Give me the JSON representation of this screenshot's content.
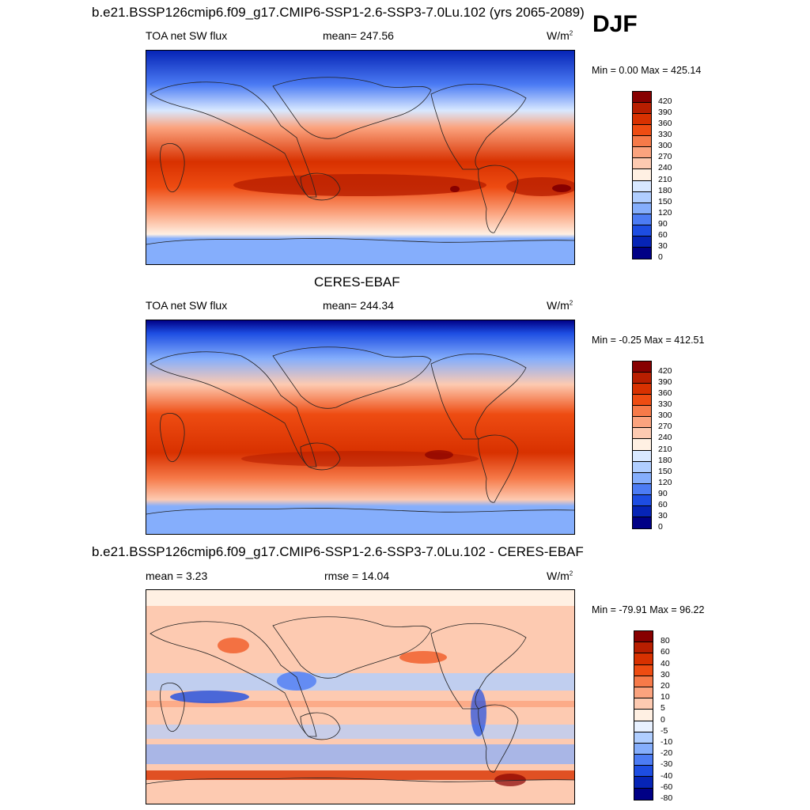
{
  "season": "DJF",
  "panels": [
    {
      "id": "model",
      "title": "b.e21.BSSP126cmip6.f09_g17.CMIP6-SSP1-2.6-SSP3-7.0Lu.102 (yrs 2065-2089)",
      "left_text": "TOA net SW flux",
      "center_text": "mean= 247.56",
      "units": "W/m",
      "units_sup": "2",
      "minmax": "Min =   0.00 Max = 425.14",
      "colorbar_labels": [
        "420",
        "390",
        "360",
        "330",
        "300",
        "270",
        "240",
        "210",
        "180",
        "150",
        "120",
        "90",
        "60",
        "30",
        "0"
      ]
    },
    {
      "id": "obs",
      "title": "CERES-EBAF",
      "left_text": "TOA net SW flux",
      "center_text": "mean= 244.34",
      "units": "W/m",
      "units_sup": "2",
      "minmax": "Min =  -0.25 Max = 412.51",
      "colorbar_labels": [
        "420",
        "390",
        "360",
        "330",
        "300",
        "270",
        "240",
        "210",
        "180",
        "150",
        "120",
        "90",
        "60",
        "30",
        "0"
      ]
    },
    {
      "id": "diff",
      "title": "b.e21.BSSP126cmip6.f09_g17.CMIP6-SSP1-2.6-SSP3-7.0Lu.102 - CERES-EBAF",
      "left_text": "mean =   3.23",
      "center_text": "rmse =  14.04",
      "units": "W/m",
      "units_sup": "2",
      "minmax": "Min = -79.91 Max =  96.22",
      "colorbar_labels": [
        "80",
        "60",
        "40",
        "30",
        "20",
        "10",
        "5",
        "0",
        "-5",
        "-10",
        "-20",
        "-30",
        "-40",
        "-60",
        "-80"
      ]
    }
  ],
  "colors": {
    "abs_scale": [
      "#870000",
      "#b81e00",
      "#d83100",
      "#ee4c12",
      "#f67a49",
      "#fba37e",
      "#fdcab1",
      "#fff0e3",
      "#d8e8ff",
      "#b0ceff",
      "#85aefc",
      "#4c7cf4",
      "#1d4de2",
      "#0624b6",
      "#000086"
    ],
    "diff_scale": [
      "#870000",
      "#b81e00",
      "#d83100",
      "#ee4c12",
      "#f67a49",
      "#fba37e",
      "#fdcab1",
      "#fff0e3",
      "#e8f1ff",
      "#b0ceff",
      "#85aefc",
      "#4c7cf4",
      "#1d4de2",
      "#0624b6",
      "#000086"
    ]
  }
}
